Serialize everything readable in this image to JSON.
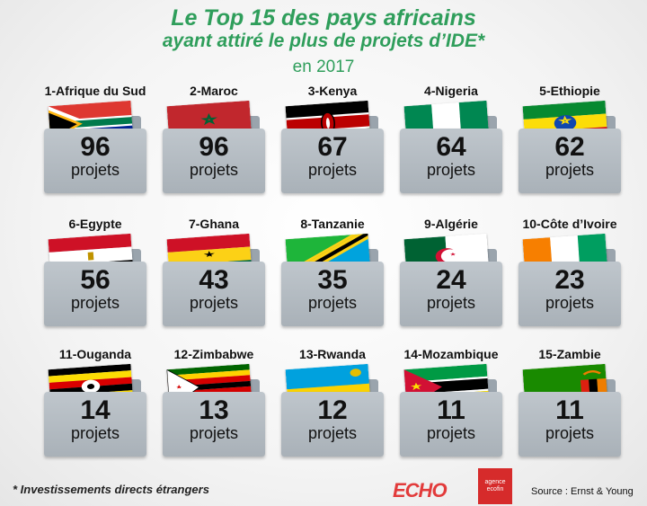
{
  "title": {
    "line1": "Le Top 15 des pays africains",
    "line2": "ayant attiré le plus de projets d’IDE*",
    "line3": "en 2017"
  },
  "unit_label": "projets",
  "countries": [
    {
      "label": "1-Afrique du Sud",
      "value": "96",
      "flag": "south-africa-flag"
    },
    {
      "label": "2-Maroc",
      "value": "96",
      "flag": "morocco-flag"
    },
    {
      "label": "3-Kenya",
      "value": "67",
      "flag": "kenya-flag"
    },
    {
      "label": "4-Nigeria",
      "value": "64",
      "flag": "nigeria-flag"
    },
    {
      "label": "5-Ethiopie",
      "value": "62",
      "flag": "ethiopia-flag"
    },
    {
      "label": "6-Egypte",
      "value": "56",
      "flag": "egypt-flag"
    },
    {
      "label": "7-Ghana",
      "value": "43",
      "flag": "ghana-flag"
    },
    {
      "label": "8-Tanzanie",
      "value": "35",
      "flag": "tanzania-flag"
    },
    {
      "label": "9-Algérie",
      "value": "24",
      "flag": "algeria-flag"
    },
    {
      "label": "10-Côte d’Ivoire",
      "value": "23",
      "flag": "cote-divoire-flag"
    },
    {
      "label": "11-Ouganda",
      "value": "14",
      "flag": "uganda-flag"
    },
    {
      "label": "12-Zimbabwe",
      "value": "13",
      "flag": "zimbabwe-flag"
    },
    {
      "label": "13-Rwanda",
      "value": "12",
      "flag": "rwanda-flag"
    },
    {
      "label": "14-Mozambique",
      "value": "11",
      "flag": "mozambique-flag"
    },
    {
      "label": "15-Zambie",
      "value": "11",
      "flag": "zambia-flag"
    }
  ],
  "footnote": "* Investissements directs étrangers",
  "logos": {
    "echo": "ECHO",
    "ecofin": "agence ecofin"
  },
  "source": "Source : Ernst & Young",
  "colors": {
    "title_green": "#2f9e5b",
    "folder_grey": "#a9b1b8"
  }
}
